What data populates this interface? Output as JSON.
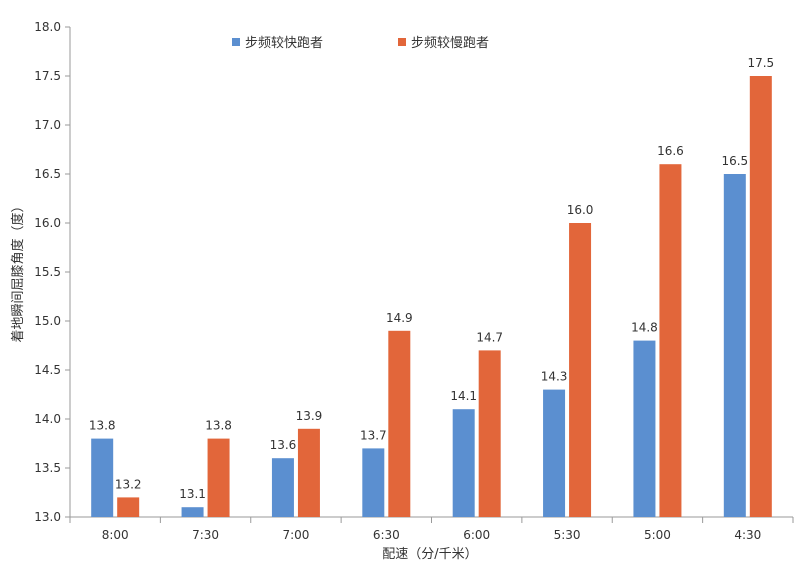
{
  "chart_data": {
    "type": "bar",
    "categories": [
      "8:00",
      "7:30",
      "7:00",
      "6:30",
      "6:00",
      "5:30",
      "5:00",
      "4:30"
    ],
    "series": [
      {
        "name": "步频较快跑者",
        "color": "#5b8fd0",
        "values": [
          13.8,
          13.1,
          13.6,
          13.7,
          14.1,
          14.3,
          14.8,
          16.5
        ]
      },
      {
        "name": "步频较慢跑者",
        "color": "#e2663a",
        "values": [
          13.2,
          13.8,
          13.9,
          14.9,
          14.7,
          16.0,
          16.6,
          17.5
        ]
      }
    ],
    "xlabel": "配速（分/千米）",
    "ylabel": "着地瞬间屈膝角度（度）",
    "ylim": [
      13.0,
      18.0
    ],
    "yticks": [
      13.0,
      13.5,
      14.0,
      14.5,
      15.0,
      15.5,
      16.0,
      16.5,
      17.0,
      17.5,
      18.0
    ],
    "legend_position": "top",
    "grid": false
  }
}
